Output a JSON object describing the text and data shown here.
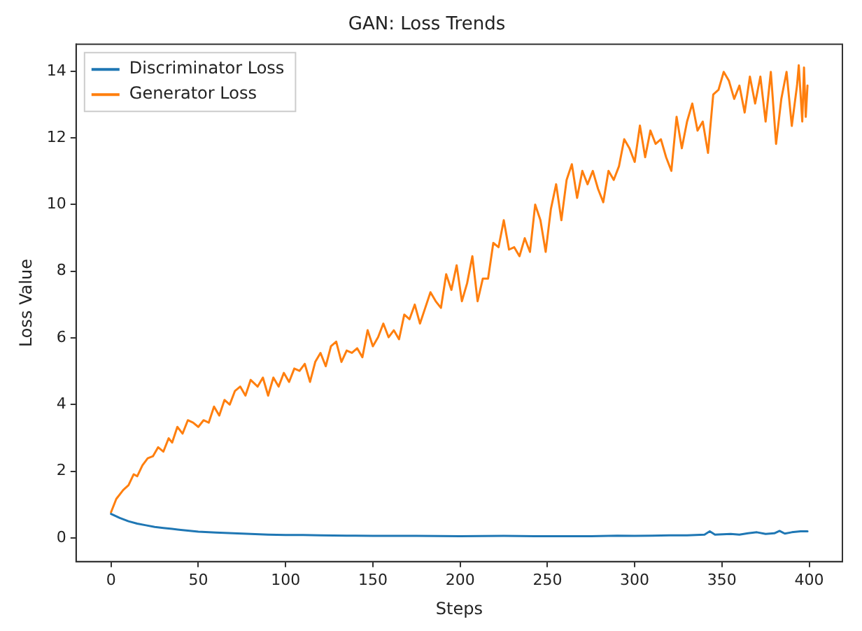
{
  "chart_data": {
    "type": "line",
    "title": "GAN: Loss Trends",
    "xlabel": "Steps",
    "ylabel": "Loss Value",
    "xlim": [
      -20,
      419
    ],
    "xticks": [
      0,
      50,
      100,
      150,
      200,
      250,
      300,
      350,
      400
    ],
    "ylim": [
      -0.71,
      14.81
    ],
    "yticks": [
      0,
      2,
      4,
      6,
      8,
      10,
      12,
      14
    ],
    "grid": false,
    "legend": "top left",
    "marker": "none",
    "line_style": "solid",
    "series": [
      {
        "name": "Discriminator Loss",
        "color": "#1f77b4",
        "x": [
          0,
          5,
          10,
          15,
          20,
          25,
          30,
          35,
          40,
          50,
          60,
          70,
          80,
          90,
          100,
          110,
          120,
          135,
          150,
          175,
          200,
          225,
          250,
          275,
          290,
          300,
          310,
          320,
          330,
          340,
          343,
          346,
          355,
          360,
          365,
          370,
          375,
          380,
          383,
          386,
          390,
          395,
          399
        ],
        "values": [
          0.72,
          0.6,
          0.5,
          0.43,
          0.38,
          0.33,
          0.3,
          0.27,
          0.24,
          0.19,
          0.16,
          0.14,
          0.12,
          0.1,
          0.09,
          0.09,
          0.08,
          0.07,
          0.06,
          0.06,
          0.05,
          0.06,
          0.05,
          0.05,
          0.07,
          0.06,
          0.07,
          0.08,
          0.08,
          0.1,
          0.2,
          0.1,
          0.12,
          0.1,
          0.14,
          0.17,
          0.12,
          0.14,
          0.21,
          0.13,
          0.17,
          0.2,
          0.2
        ]
      },
      {
        "name": "Generator Loss",
        "color": "#ff7f0e",
        "x": [
          0,
          3,
          7,
          10,
          13,
          15,
          18,
          21,
          24,
          27,
          30,
          33,
          35,
          38,
          41,
          44,
          47,
          50,
          53,
          56,
          59,
          62,
          65,
          68,
          71,
          74,
          77,
          80,
          84,
          87,
          90,
          93,
          96,
          99,
          102,
          105,
          108,
          111,
          114,
          117,
          120,
          123,
          126,
          129,
          132,
          135,
          138,
          141,
          144,
          147,
          150,
          153,
          156,
          159,
          162,
          165,
          168,
          171,
          174,
          177,
          180,
          183,
          186,
          189,
          192,
          195,
          198,
          201,
          204,
          207,
          210,
          213,
          216,
          219,
          222,
          225,
          228,
          231,
          234,
          237,
          240,
          243,
          246,
          249,
          252,
          255,
          258,
          261,
          264,
          267,
          270,
          273,
          276,
          279,
          282,
          285,
          288,
          291,
          294,
          297,
          300,
          303,
          306,
          309,
          312,
          315,
          318,
          321,
          324,
          327,
          330,
          333,
          336,
          339,
          342,
          345,
          348,
          351,
          354,
          357,
          360,
          363,
          366,
          369,
          372,
          375,
          378,
          381,
          384,
          387,
          390,
          393,
          394,
          396,
          397,
          398,
          399
        ],
        "values": [
          0.77,
          1.17,
          1.44,
          1.58,
          1.91,
          1.85,
          2.18,
          2.39,
          2.45,
          2.72,
          2.59,
          2.99,
          2.86,
          3.33,
          3.13,
          3.53,
          3.46,
          3.33,
          3.53,
          3.46,
          3.94,
          3.67,
          4.14,
          4.0,
          4.41,
          4.54,
          4.27,
          4.74,
          4.54,
          4.81,
          4.27,
          4.81,
          4.54,
          4.95,
          4.68,
          5.08,
          5.01,
          5.22,
          4.68,
          5.28,
          5.55,
          5.15,
          5.75,
          5.89,
          5.28,
          5.62,
          5.55,
          5.69,
          5.42,
          6.23,
          5.75,
          6.02,
          6.43,
          6.02,
          6.23,
          5.96,
          6.7,
          6.56,
          7.0,
          6.43,
          6.9,
          7.37,
          7.1,
          6.9,
          7.91,
          7.44,
          8.18,
          7.1,
          7.64,
          8.45,
          7.1,
          7.78,
          7.78,
          8.85,
          8.72,
          9.53,
          8.65,
          8.72,
          8.45,
          8.99,
          8.58,
          10.0,
          9.53,
          8.58,
          9.87,
          10.61,
          9.53,
          10.74,
          11.21,
          10.2,
          11.01,
          10.61,
          11.01,
          10.47,
          10.07,
          11.01,
          10.74,
          11.15,
          11.96,
          11.69,
          11.28,
          12.37,
          11.42,
          12.22,
          11.82,
          11.96,
          11.42,
          11.01,
          12.63,
          11.69,
          12.49,
          13.03,
          12.22,
          12.49,
          11.55,
          13.3,
          13.44,
          13.98,
          13.71,
          13.17,
          13.57,
          12.76,
          13.84,
          13.03,
          13.84,
          12.49,
          13.98,
          11.82,
          13.17,
          13.98,
          12.36,
          13.57,
          14.18,
          12.49,
          14.11,
          12.63,
          13.57
        ]
      }
    ]
  }
}
